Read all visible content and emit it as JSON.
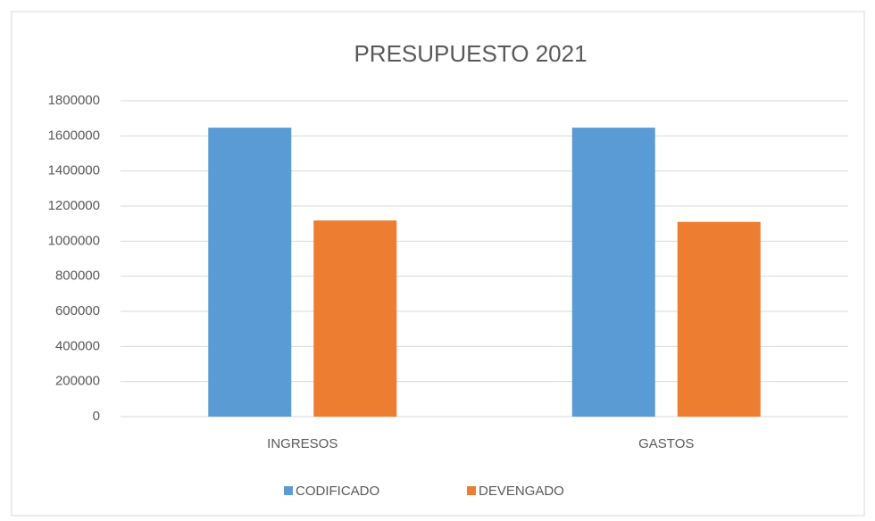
{
  "chart_data": {
    "type": "bar",
    "title": "PRESUPUESTO 2021",
    "categories": [
      "INGRESOS",
      "GASTOS"
    ],
    "series": [
      {
        "name": "CODIFICADO",
        "color": "#5b9bd5",
        "values": [
          1647000,
          1647000
        ]
      },
      {
        "name": "DEVENGADO",
        "color": "#ed7d31",
        "values": [
          1118000,
          1110000
        ]
      }
    ],
    "ylim": [
      0,
      1800000
    ],
    "yticks": [
      0,
      200000,
      400000,
      600000,
      800000,
      1000000,
      1200000,
      1400000,
      1600000,
      1800000
    ],
    "grid": true,
    "legend": "bottom"
  }
}
